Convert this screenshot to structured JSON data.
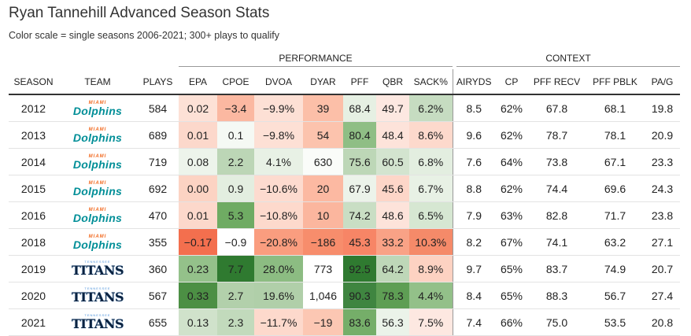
{
  "title": "Ryan Tannehill Advanced Season Stats",
  "subtitle": "Color scale = single seasons 2006-2021; 300+ plays to qualify",
  "groups": {
    "performance": "PERFORMANCE",
    "context": "CONTEXT"
  },
  "columns": [
    "SEASON",
    "TEAM",
    "PLAYS",
    "EPA",
    "CPOE",
    "DVOA",
    "DYAR",
    "PFF",
    "QBR",
    "SACK%",
    "AIRYDS",
    "CP",
    "PFF RECV",
    "PFF PBLK",
    "PA/G"
  ],
  "logos": {
    "dolphins": {
      "top": "MIAMI",
      "name": "Dolphins"
    },
    "titans": {
      "top": "TENNESSEE",
      "name": "TITANS"
    }
  },
  "rows": [
    {
      "season": "2012",
      "team": "dolphins",
      "plays": "584",
      "epa": "0.02",
      "cpoe": "−3.4",
      "dvoa": "−9.9%",
      "dyar": "39",
      "pff": "68.4",
      "qbr": "49.7",
      "sack": "6.2%",
      "airyds": "8.5",
      "cp": "62%",
      "pffrecv": "67.8",
      "pffpblk": "68.1",
      "pag": "19.8",
      "colors": {
        "epa": "#fde1d6",
        "cpoe": "#fbb8a1",
        "dvoa": "#fde0d5",
        "dyar": "#fcbfa8",
        "pff": "#e6f0e3",
        "qbr": "#fde8e1",
        "sack": "#c6dcc1"
      }
    },
    {
      "season": "2013",
      "team": "dolphins",
      "plays": "689",
      "epa": "0.01",
      "cpoe": "0.1",
      "dvoa": "−9.8%",
      "dyar": "54",
      "pff": "80.4",
      "qbr": "48.4",
      "sack": "8.6%",
      "airyds": "9.6",
      "cp": "62%",
      "pffrecv": "78.7",
      "pffpblk": "78.1",
      "pag": "20.9",
      "colors": {
        "epa": "#fcd8cb",
        "cpoe": "#f5f9f4",
        "dvoa": "#fde0d5",
        "dyar": "#fcc3ad",
        "pff": "#8fbe85",
        "qbr": "#fde3da",
        "sack": "#fdd9cc"
      }
    },
    {
      "season": "2014",
      "team": "dolphins",
      "plays": "719",
      "epa": "0.08",
      "cpoe": "2.2",
      "dvoa": "4.1%",
      "dyar": "630",
      "pff": "75.6",
      "qbr": "60.5",
      "sack": "6.8%",
      "airyds": "7.6",
      "cp": "64%",
      "pffrecv": "73.8",
      "pffpblk": "67.1",
      "pag": "23.3",
      "colors": {
        "epa": "#edf4eb",
        "cpoe": "#bcd6b6",
        "dvoa": "#e8f1e5",
        "dyar": "#fafcf9",
        "pff": "#bdd7b7",
        "qbr": "#d3e4cf",
        "sack": "#e3eee0"
      }
    },
    {
      "season": "2015",
      "team": "dolphins",
      "plays": "692",
      "epa": "0.00",
      "cpoe": "0.9",
      "dvoa": "−10.6%",
      "dyar": "20",
      "pff": "67.9",
      "qbr": "45.6",
      "sack": "6.7%",
      "airyds": "8.8",
      "cp": "62%",
      "pffrecv": "74.4",
      "pffpblk": "69.6",
      "pag": "24.3",
      "colors": {
        "epa": "#fcd3c3",
        "cpoe": "#e3eee0",
        "dvoa": "#fddbcf",
        "dyar": "#fcb9a2",
        "pff": "#ecf3ea",
        "qbr": "#fdd6c8",
        "sack": "#e8f1e5"
      }
    },
    {
      "season": "2016",
      "team": "dolphins",
      "plays": "470",
      "epa": "0.01",
      "cpoe": "5.3",
      "dvoa": "−10.8%",
      "dyar": "10",
      "pff": "74.2",
      "qbr": "48.6",
      "sack": "6.5%",
      "airyds": "7.9",
      "cp": "63%",
      "pffrecv": "82.8",
      "pffpblk": "71.7",
      "pag": "23.8",
      "colors": {
        "epa": "#fcd8cb",
        "cpoe": "#6fab63",
        "dvoa": "#fdd9cc",
        "dyar": "#fbb69e",
        "pff": "#c9dec4",
        "qbr": "#fde3da",
        "sack": "#d6e7d2"
      }
    },
    {
      "season": "2018",
      "team": "dolphins",
      "plays": "355",
      "epa": "−0.17",
      "cpoe": "−0.9",
      "dvoa": "−20.8%",
      "dyar": "−186",
      "pff": "45.3",
      "qbr": "33.2",
      "sack": "10.3%",
      "airyds": "8.2",
      "cp": "67%",
      "pffrecv": "74.1",
      "pffpblk": "63.2",
      "pag": "27.1",
      "colors": {
        "epa": "#f36f4e",
        "cpoe": "#ffffff",
        "dvoa": "#fa9d7f",
        "dyar": "#f78d6c",
        "pff": "#f78566",
        "qbr": "#f9a286",
        "sack": "#f58a69"
      }
    },
    {
      "season": "2019",
      "team": "titans",
      "plays": "360",
      "epa": "0.23",
      "cpoe": "7.7",
      "dvoa": "28.0%",
      "dyar": "773",
      "pff": "92.5",
      "qbr": "64.2",
      "sack": "8.9%",
      "airyds": "9.7",
      "cp": "65%",
      "pffrecv": "83.7",
      "pffpblk": "74.9",
      "pag": "20.7",
      "colors": {
        "epa": "#94c18a",
        "cpoe": "#2f7a30",
        "dvoa": "#8cbc82",
        "dyar": "#ffffff",
        "pff": "#2f7a30",
        "qbr": "#bed7b8",
        "sack": "#fdd2c2"
      }
    },
    {
      "season": "2020",
      "team": "titans",
      "plays": "567",
      "epa": "0.33",
      "cpoe": "2.7",
      "dvoa": "19.6%",
      "dyar": "1,046",
      "pff": "90.3",
      "qbr": "78.3",
      "sack": "4.4%",
      "airyds": "8.4",
      "cp": "65%",
      "pffrecv": "88.3",
      "pffpblk": "56.7",
      "pag": "27.4",
      "colors": {
        "epa": "#4c8f44",
        "cpoe": "#b2d0ab",
        "dvoa": "#b0cfa9",
        "dyar": "#ffffff",
        "pff": "#3f8540",
        "qbr": "#5e9e54",
        "sack": "#93c089"
      }
    },
    {
      "season": "2021",
      "team": "titans",
      "plays": "655",
      "epa": "0.13",
      "cpoe": "2.3",
      "dvoa": "−11.7%",
      "dyar": "−19",
      "pff": "83.6",
      "qbr": "56.3",
      "sack": "7.5%",
      "airyds": "7.4",
      "cp": "66%",
      "pffrecv": "75.0",
      "pffpblk": "53.5",
      "pag": "20.8",
      "colors": {
        "epa": "#d0e2cb",
        "cpoe": "#c2daBc",
        "dvoa": "#fdd9cc",
        "dyar": "#fcc7b3",
        "pff": "#75ae69",
        "qbr": "#ebf3e9",
        "sack": "#fde8e1"
      }
    }
  ]
}
